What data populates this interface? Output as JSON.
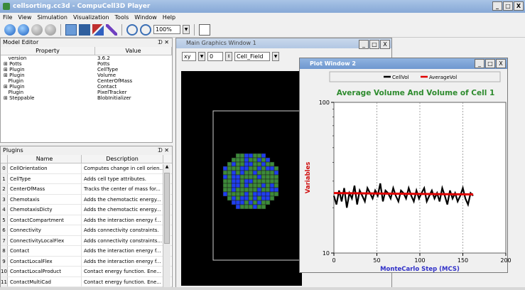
{
  "window": {
    "title": "cellsorting.cc3d - CompuCell3D Player",
    "controls": [
      "_",
      "□",
      "X"
    ]
  },
  "menu": [
    "File",
    "View",
    "Simulation",
    "Visualization",
    "Tools",
    "Window",
    "Help"
  ],
  "toolbar": {
    "zoom": "100%"
  },
  "model_editor": {
    "title": "Model Editor",
    "col_property": "Property",
    "col_value": "Value",
    "rows": [
      {
        "p": "version",
        "v": "3.6.2",
        "exp": ""
      },
      {
        "p": "Potts",
        "v": "Potts",
        "exp": "⊞"
      },
      {
        "p": "Plugin",
        "v": "CellType",
        "exp": "⊞"
      },
      {
        "p": "Plugin",
        "v": "Volume",
        "exp": "⊞"
      },
      {
        "p": "Plugin",
        "v": "CenterOfMass",
        "exp": ""
      },
      {
        "p": "Plugin",
        "v": "Contact",
        "exp": "⊞"
      },
      {
        "p": "Plugin",
        "v": "PixelTracker",
        "exp": ""
      },
      {
        "p": "Steppable",
        "v": "BlobInitializer",
        "exp": "⊞"
      }
    ]
  },
  "plugins": {
    "title": "Plugins",
    "col_name": "Name",
    "col_desc": "Description",
    "rows": [
      {
        "i": "0",
        "n": "CellOrientation",
        "d": "Computes change in cell orien..."
      },
      {
        "i": "1",
        "n": "CellType",
        "d": "Adds cell type attributes."
      },
      {
        "i": "2",
        "n": "CenterOfMass",
        "d": "Tracks the center of mass for..."
      },
      {
        "i": "3",
        "n": "Chemotaxis",
        "d": "Adds the chemotactic energy..."
      },
      {
        "i": "4",
        "n": "ChemotaxisDicty",
        "d": "Adds the chemotactic energy..."
      },
      {
        "i": "5",
        "n": "ContactCompartment",
        "d": "Adds the interaction energy f..."
      },
      {
        "i": "6",
        "n": "Connectivity",
        "d": "Adds connectivity constraints."
      },
      {
        "i": "7",
        "n": "ConnectivityLocalFlex",
        "d": "Adds connectivity constraints..."
      },
      {
        "i": "8",
        "n": "Contact",
        "d": "Adds the interaction energy f..."
      },
      {
        "i": "9",
        "n": "ContactLocalFlex",
        "d": "Adds the interaction energy f..."
      },
      {
        "i": "10",
        "n": "ContactLocalProduct",
        "d": "Contact energy function. Ene..."
      },
      {
        "i": "11",
        "n": "ContactMultiCad",
        "d": "Contact energy function. Ene..."
      }
    ]
  },
  "main_graphics": {
    "title": "Main Graphics Window 1",
    "plane": "xy",
    "slice": "0",
    "field": "Cell_Field"
  },
  "plot_window": {
    "title": "Plot Window 2",
    "colors": {
      "cellvol": "#000000",
      "avgvol": "#e00000",
      "title": "#2e8b2e",
      "xlabel": "#3030c8",
      "ylabel": "#d01010"
    }
  },
  "chart_data": {
    "type": "line",
    "title": "Average Volume And Volume of Cell 1",
    "xlabel": "MonteCarlo Step (MCS)",
    "ylabel": "Variables",
    "xlim": [
      0,
      200
    ],
    "ylim": [
      10,
      100
    ],
    "yscale": "log",
    "xticks": [
      0,
      50,
      100,
      150,
      200
    ],
    "yticks": [
      10,
      100
    ],
    "grid": "vertical dashed",
    "legend": "top",
    "series": [
      {
        "name": "CellVol",
        "color": "#000000",
        "x": [
          0,
          3,
          6,
          9,
          12,
          15,
          18,
          21,
          24,
          27,
          30,
          33,
          36,
          39,
          42,
          45,
          48,
          51,
          54,
          57,
          60,
          63,
          66,
          69,
          72,
          75,
          78,
          81,
          84,
          87,
          90,
          93,
          96,
          99,
          102,
          105,
          108,
          111,
          114,
          117,
          120,
          123,
          126,
          129,
          132,
          135,
          138,
          141,
          144,
          147,
          150,
          153,
          156,
          159,
          162
        ],
        "values": [
          24,
          21,
          26,
          22,
          27,
          20,
          25,
          23,
          28,
          21,
          26,
          24,
          22,
          27,
          25,
          23,
          26,
          24,
          29,
          22,
          26,
          25,
          23,
          27,
          24,
          22,
          26,
          25,
          23,
          27,
          24,
          22,
          26,
          23,
          25,
          27,
          22,
          24,
          26,
          23,
          25,
          22,
          27,
          24,
          21,
          26,
          23,
          25,
          22,
          24,
          27,
          23,
          21,
          25,
          24
        ]
      },
      {
        "name": "AverageVol",
        "color": "#e00000",
        "x": [
          0,
          162
        ],
        "values": [
          25,
          24.5
        ]
      }
    ]
  }
}
